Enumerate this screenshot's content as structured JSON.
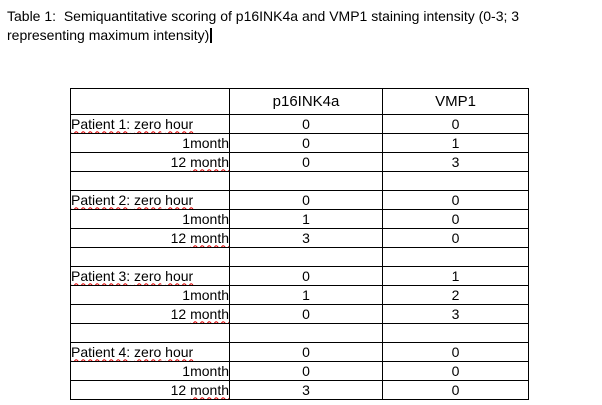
{
  "title": {
    "line1": "Table 1:  Semiquantitative scoring of p16INK4a and VMP1 staining intensity (0-3; 3",
    "line2": "representing maximum intensity)"
  },
  "colors": {
    "text": "#000000",
    "table_border": "#000000",
    "spellcheck_underline": "#e00000",
    "background": "#ffffff"
  },
  "cursor": {
    "present_after_title": true
  },
  "table": {
    "header": {
      "col1": "",
      "col2": "p16INK4a",
      "col3": "VMP1"
    },
    "rows": [
      {
        "type": "patient",
        "label_patient": "Patient 1:",
        "label_zero": "zero",
        "label_hour": "hour",
        "p16": "0",
        "vmp1": "0"
      },
      {
        "type": "month1",
        "label": "1month",
        "p16": "0",
        "vmp1": "1"
      },
      {
        "type": "month12",
        "label_num": "12",
        "label_month": "month",
        "p16": "0",
        "vmp1": "3"
      },
      {
        "type": "empty",
        "label": "",
        "p16": "",
        "vmp1": ""
      },
      {
        "type": "patient",
        "label_patient": "Patient 2:",
        "label_zero": "zero",
        "label_hour": "hour",
        "p16": "0",
        "vmp1": "0"
      },
      {
        "type": "month1",
        "label": "1month",
        "p16": "1",
        "vmp1": "0"
      },
      {
        "type": "month12",
        "label_num": "12",
        "label_month": "month",
        "p16": "3",
        "vmp1": "0"
      },
      {
        "type": "empty",
        "label": "",
        "p16": "",
        "vmp1": ""
      },
      {
        "type": "patient",
        "label_patient": "Patient 3:",
        "label_zero": "zero",
        "label_hour": "hour",
        "p16": "0",
        "vmp1": "1"
      },
      {
        "type": "month1",
        "label": "1month",
        "p16": "1",
        "vmp1": "2"
      },
      {
        "type": "month12",
        "label_num": "12",
        "label_month": "month",
        "p16": "0",
        "vmp1": "3"
      },
      {
        "type": "empty",
        "label": "",
        "p16": "",
        "vmp1": ""
      },
      {
        "type": "patient",
        "label_patient": "Patient 4:",
        "label_zero": "zero",
        "label_hour": "hour",
        "p16": "0",
        "vmp1": "0"
      },
      {
        "type": "month1",
        "label": "1month",
        "p16": "0",
        "vmp1": "0"
      },
      {
        "type": "month12",
        "label_num": "12",
        "label_month": "month",
        "p16": "3",
        "vmp1": "0"
      }
    ]
  }
}
